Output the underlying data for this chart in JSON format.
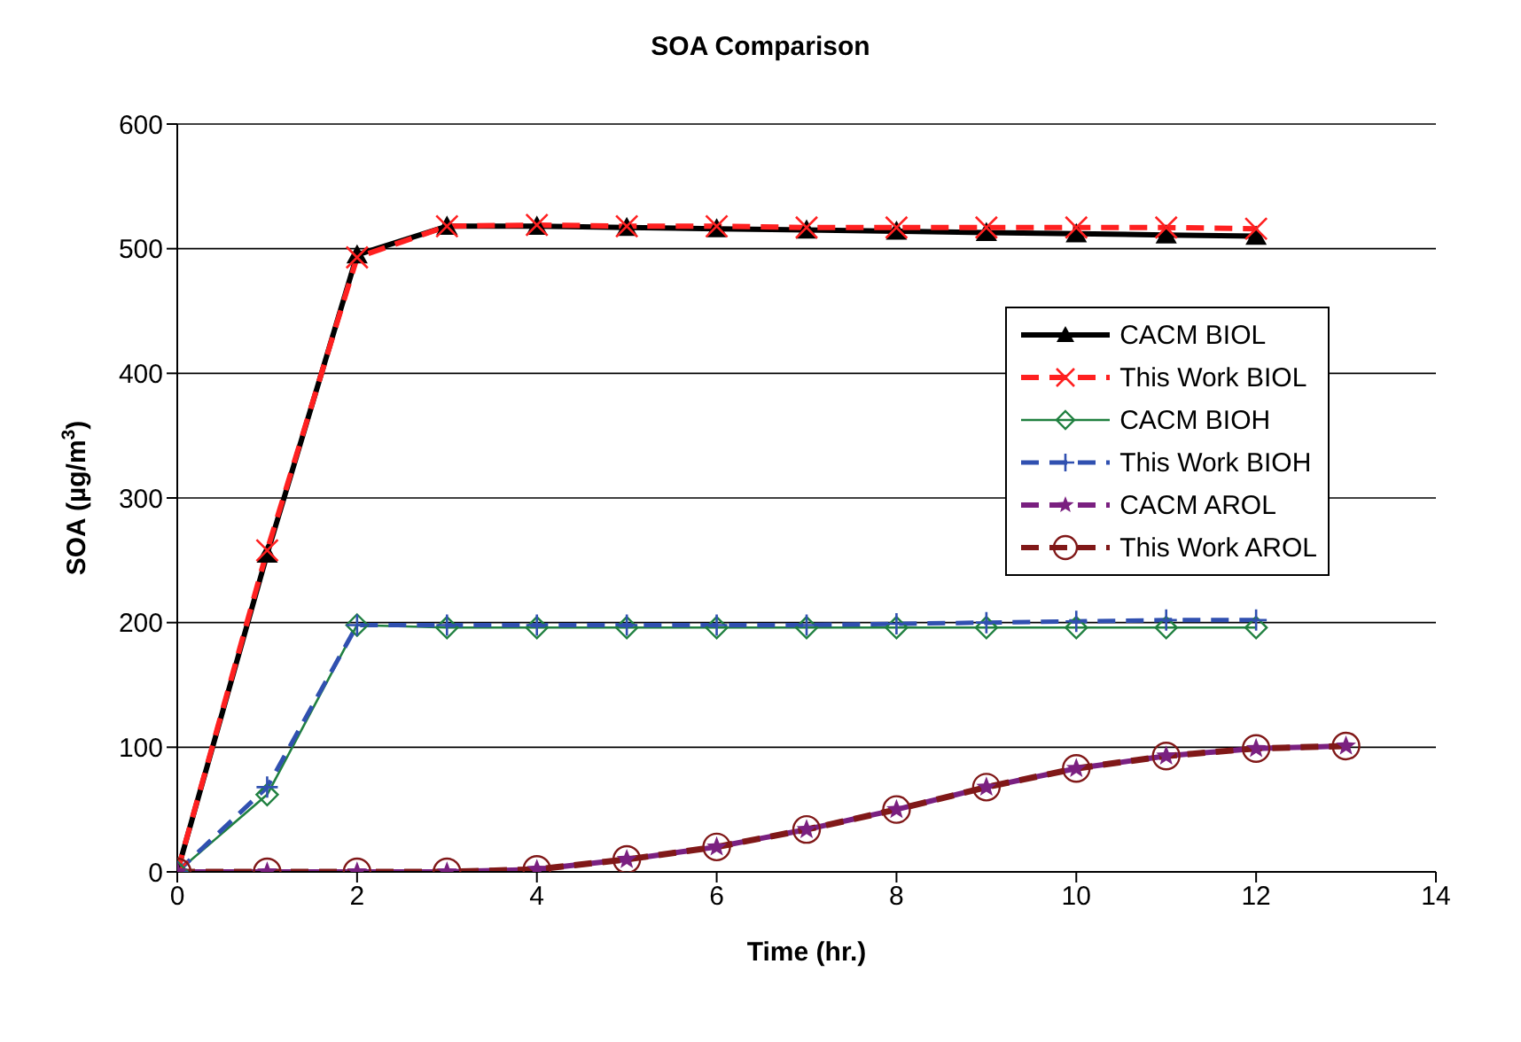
{
  "chart_data": {
    "type": "line",
    "title": "SOA Comparison",
    "xlabel": "Time (hr.)",
    "ylabel": "SOA (µg/m$^{3}$)",
    "xlim": [
      0,
      14
    ],
    "xticks": [
      0,
      2,
      4,
      6,
      8,
      10,
      12,
      14
    ],
    "ylim": [
      0,
      600
    ],
    "yticks": [
      0,
      100,
      200,
      300,
      400,
      500,
      600
    ],
    "grid": "y",
    "legend": "right",
    "series": [
      {
        "name": "CACM BIOL",
        "color": "#000000",
        "marker": "triangle",
        "line_style": "solid",
        "x": [
          0,
          1,
          2,
          3,
          4,
          5,
          6,
          7,
          8,
          9,
          10,
          11,
          12
        ],
        "values": [
          0,
          255,
          495,
          518,
          518,
          517,
          516,
          515,
          514,
          513,
          512,
          511,
          510
        ]
      },
      {
        "name": "This Work BIOL",
        "color": "#ff2020",
        "marker": "cross",
        "line_style": "dashed",
        "x": [
          0,
          1,
          2,
          3,
          4,
          5,
          6,
          7,
          8,
          9,
          10,
          11,
          12
        ],
        "values": [
          0,
          258,
          493,
          518,
          519,
          518,
          518,
          517,
          517,
          517,
          517,
          517,
          516
        ]
      },
      {
        "name": "CACM BIOH",
        "color": "#208040",
        "marker": "diamond",
        "line_style": "solid",
        "x": [
          0,
          1,
          2,
          3,
          4,
          5,
          6,
          7,
          8,
          9,
          10,
          11,
          12
        ],
        "values": [
          0,
          62,
          198,
          196,
          196,
          196,
          196,
          196,
          196,
          196,
          196,
          196,
          196
        ]
      },
      {
        "name": "This Work BIOH",
        "color": "#3050b0",
        "marker": "plus",
        "line_style": "dashed",
        "x": [
          0,
          1,
          2,
          3,
          4,
          5,
          6,
          7,
          8,
          9,
          10,
          11,
          12
        ],
        "values": [
          0,
          68,
          198,
          198,
          198,
          198,
          198,
          198,
          199,
          200,
          201,
          202,
          202
        ]
      },
      {
        "name": "CACM AROL",
        "color": "#7a2080",
        "marker": "star",
        "line_style": "dashed",
        "x": [
          0,
          1,
          2,
          3,
          4,
          5,
          6,
          7,
          8,
          9,
          10,
          11,
          12,
          13
        ],
        "values": [
          0,
          0,
          0,
          0,
          2,
          10,
          20,
          34,
          50,
          68,
          83,
          93,
          99,
          101
        ]
      },
      {
        "name": "This Work AROL",
        "color": "#801818",
        "marker": "circle",
        "line_style": "dashed",
        "x": [
          0,
          1,
          2,
          3,
          4,
          5,
          6,
          7,
          8,
          9,
          10,
          11,
          12,
          13
        ],
        "values": [
          0,
          0,
          0,
          0,
          2,
          10,
          20,
          34,
          50,
          68,
          83,
          93,
          99,
          101
        ]
      }
    ]
  }
}
